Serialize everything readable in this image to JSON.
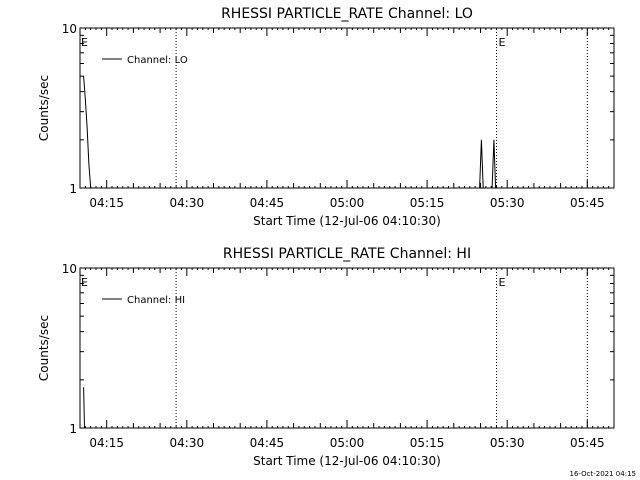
{
  "footer": {
    "timestamp": "16-Oct-2021 04:15"
  },
  "chart_data": [
    {
      "type": "line",
      "title": "RHESSI PARTICLE_RATE Channel: LO",
      "xlabel": "Start Time (12-Jul-06 04:10:30)",
      "ylabel": "Counts/sec",
      "yscale": "log",
      "xlim": [
        "04:10",
        "05:50"
      ],
      "ylim": [
        1,
        10
      ],
      "x_ticks": [
        "04:15",
        "04:30",
        "04:45",
        "05:00",
        "05:15",
        "05:30",
        "05:45"
      ],
      "y_ticks": [
        "1",
        "10"
      ],
      "legend": {
        "entries": [
          "Channel: LO"
        ],
        "placement": "top-left"
      },
      "event_markers": [
        {
          "time": "04:28",
          "label": ""
        },
        {
          "time": "05:28",
          "label": "E"
        },
        {
          "time": "05:45",
          "label": ""
        }
      ],
      "start_marker": {
        "label": "E"
      },
      "series": [
        {
          "name": "Channel: LO",
          "points": [
            {
              "x": "04:10:40",
              "y": 5.0
            },
            {
              "x": "04:11:00",
              "y": 3.6
            },
            {
              "x": "04:11:20",
              "y": 2.4
            },
            {
              "x": "04:11:40",
              "y": 1.4
            },
            {
              "x": "04:12:00",
              "y": 1.0
            }
          ]
        },
        {
          "name": "Channel: LO",
          "points": [
            {
              "x": "05:24:50",
              "y": 1.0
            },
            {
              "x": "05:25:10",
              "y": 2.0
            },
            {
              "x": "05:25:30",
              "y": 1.0
            }
          ]
        },
        {
          "name": "Channel: LO",
          "points": [
            {
              "x": "05:27:10",
              "y": 1.0
            },
            {
              "x": "05:27:30",
              "y": 2.0
            },
            {
              "x": "05:27:50",
              "y": 1.0
            }
          ]
        }
      ]
    },
    {
      "type": "line",
      "title": "RHESSI PARTICLE_RATE Channel: HI",
      "xlabel": "Start Time (12-Jul-06 04:10:30)",
      "ylabel": "Counts/sec",
      "yscale": "log",
      "xlim": [
        "04:10",
        "05:50"
      ],
      "ylim": [
        1,
        10
      ],
      "x_ticks": [
        "04:15",
        "04:30",
        "04:45",
        "05:00",
        "05:15",
        "05:30",
        "05:45"
      ],
      "y_ticks": [
        "1",
        "10"
      ],
      "legend": {
        "entries": [
          "Channel: HI"
        ],
        "placement": "top-left"
      },
      "event_markers": [
        {
          "time": "04:28",
          "label": ""
        },
        {
          "time": "05:28",
          "label": "E"
        },
        {
          "time": "05:45",
          "label": ""
        }
      ],
      "start_marker": {
        "label": "E"
      },
      "series": [
        {
          "name": "Channel: HI",
          "points": [
            {
              "x": "04:10:40",
              "y": 1.8
            },
            {
              "x": "04:10:50",
              "y": 1.0
            }
          ]
        }
      ]
    }
  ]
}
